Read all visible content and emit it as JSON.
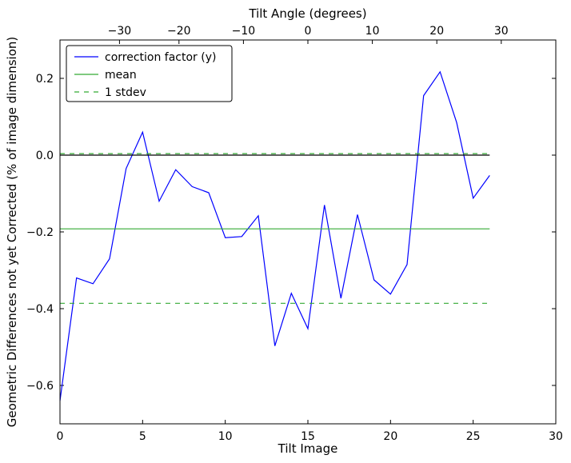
{
  "chart_data": {
    "type": "line",
    "title": "",
    "xlabel": "Tilt Image",
    "ylabel": "Geometric Differences not yet Corrected (% of image dimension)",
    "top_xlabel": "Tilt Angle (degrees)",
    "xlim": [
      0,
      30
    ],
    "ylim": [
      -0.7,
      0.3
    ],
    "x_ticks": [
      0,
      5,
      10,
      15,
      20,
      25,
      30
    ],
    "x_tick_labels": [
      "0",
      "5",
      "10",
      "15",
      "20",
      "25",
      "30"
    ],
    "y_ticks": [
      -0.6,
      -0.4,
      -0.2,
      0.0,
      0.2
    ],
    "y_tick_labels": [
      "−0.6",
      "−0.4",
      "−0.2",
      "0.0",
      "0.2"
    ],
    "top_ticks": [
      {
        "image": 3.6,
        "label": "−30"
      },
      {
        "image": 7.2,
        "label": "−20"
      },
      {
        "image": 11.1,
        "label": "−10"
      },
      {
        "image": 15.0,
        "label": "0"
      },
      {
        "image": 18.9,
        "label": "10"
      },
      {
        "image": 22.8,
        "label": "20"
      },
      {
        "image": 26.7,
        "label": "30"
      }
    ],
    "grid": false,
    "legend_position": "top-left",
    "legend": [
      {
        "label": "correction factor (y)",
        "color": "#0000ff",
        "style": "solid"
      },
      {
        "label": "mean",
        "color": "#33aa33",
        "style": "solid"
      },
      {
        "label": "1 stdev",
        "color": "#33aa33",
        "style": "dashed"
      }
    ],
    "series": [
      {
        "name": "correction factor (y)",
        "color": "#0000ff",
        "style": "solid",
        "x": [
          0,
          1,
          2,
          3,
          4,
          5,
          6,
          7,
          8,
          9,
          10,
          11,
          12,
          13,
          14,
          15,
          16,
          17,
          18,
          19,
          20,
          21,
          22,
          23,
          24,
          25,
          26
        ],
        "y": [
          -0.64,
          -0.32,
          -0.335,
          -0.27,
          -0.035,
          0.06,
          -0.12,
          -0.038,
          -0.082,
          -0.098,
          -0.215,
          -0.212,
          -0.158,
          -0.497,
          -0.36,
          -0.452,
          -0.13,
          -0.373,
          -0.155,
          -0.325,
          -0.362,
          -0.285,
          0.155,
          0.217,
          0.085,
          -0.112,
          -0.053
        ]
      },
      {
        "name": "mean",
        "color": "#33aa33",
        "style": "solid",
        "x": [
          0,
          26
        ],
        "y": [
          -0.192,
          -0.192
        ]
      },
      {
        "name": "1 stdev",
        "color": "#33aa33",
        "style": "dashed",
        "x": [
          0,
          26
        ],
        "y": [
          0.004,
          0.004
        ]
      },
      {
        "name": "1 stdev",
        "color": "#33aa33",
        "style": "dashed",
        "x": [
          0,
          26
        ],
        "y": [
          -0.386,
          -0.386
        ]
      },
      {
        "name": "",
        "color": "#000000",
        "style": "solid",
        "x": [
          0,
          26
        ],
        "y": [
          0.0,
          0.0
        ]
      }
    ]
  }
}
